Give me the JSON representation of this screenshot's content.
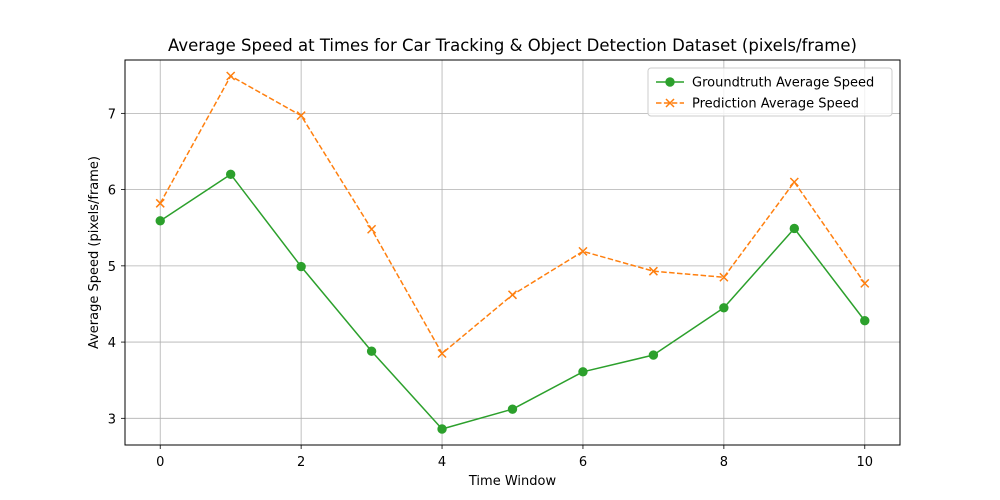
{
  "chart_data": {
    "type": "line",
    "title": "Average Speed at Times for Car Tracking & Object Detection Dataset (pixels/frame)",
    "xlabel": "Time Window",
    "ylabel": "Average Speed (pixels/frame)",
    "x": [
      0,
      1,
      2,
      3,
      4,
      5,
      6,
      7,
      8,
      9,
      10
    ],
    "xlim": [
      -0.5,
      10.5
    ],
    "ylim": [
      2.65,
      7.7
    ],
    "xticks": [
      0,
      2,
      4,
      6,
      8,
      10
    ],
    "yticks": [
      3,
      4,
      5,
      6,
      7
    ],
    "grid": true,
    "legend_position": "top-right",
    "series": [
      {
        "name": "Groundtruth Average Speed",
        "color": "#2ca02c",
        "marker": "circle",
        "linestyle": "solid",
        "values": [
          5.59,
          6.2,
          4.99,
          3.88,
          2.86,
          3.12,
          3.61,
          3.83,
          4.45,
          5.49,
          4.28
        ]
      },
      {
        "name": "Prediction Average Speed",
        "color": "#ff7f0e",
        "marker": "x",
        "linestyle": "dashed",
        "values": [
          5.82,
          7.49,
          6.97,
          5.48,
          3.85,
          4.62,
          5.19,
          4.93,
          4.85,
          6.1,
          4.77
        ]
      }
    ]
  }
}
